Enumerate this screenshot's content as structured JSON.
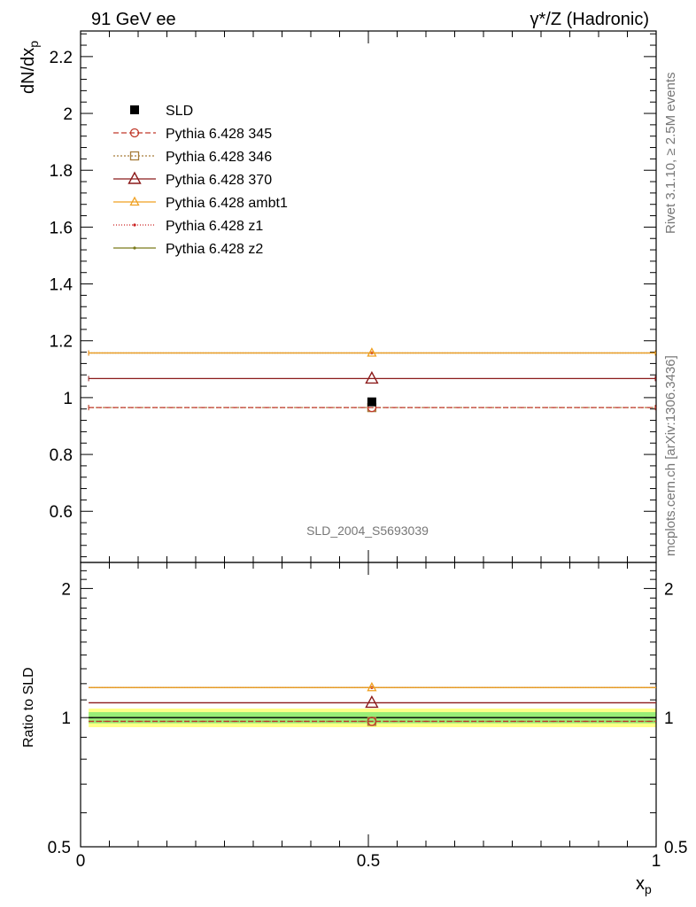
{
  "header": {
    "left": "91 GeV ee",
    "right": "γ*/Z (Hadronic)"
  },
  "side_texts": {
    "rivet": "Rivet 3.1.10, ≥ 2.5M events",
    "mcplots": "mcplots.cern.ch [arXiv:1306.3436]"
  },
  "watermark": "SLD_2004_S5693039",
  "chart_data": [
    {
      "type": "line",
      "panel": "main",
      "ylabel": "dN/dx",
      "ylabel_sub": "p",
      "xlim": [
        0,
        1
      ],
      "ylim": [
        0.42,
        2.29
      ],
      "yticks": [
        {
          "v": 0.6,
          "label": "0.6"
        },
        {
          "v": 0.8,
          "label": "0.8"
        },
        {
          "v": 1.0,
          "label": "1"
        },
        {
          "v": 1.2,
          "label": "1.2"
        },
        {
          "v": 1.4,
          "label": "1.4"
        },
        {
          "v": 1.6,
          "label": "1.6"
        },
        {
          "v": 1.8,
          "label": "1.8"
        },
        {
          "v": 2.0,
          "label": "2"
        },
        {
          "v": 2.2,
          "label": "2.2"
        }
      ],
      "data": {
        "name": "SLD",
        "x": 0.506,
        "y": 0.985
      },
      "series": [
        {
          "name": "Pythia 6.428 345",
          "x": [
            0.014,
            1.0
          ],
          "y": 0.965,
          "color": "#c0392b",
          "dash": "6,3",
          "marker": "circle"
        },
        {
          "name": "Pythia 6.428 346",
          "x": [
            0.014,
            1.0
          ],
          "y": 0.965,
          "color": "#a67c3a",
          "dash": "2,2",
          "marker": "square"
        },
        {
          "name": "Pythia 6.428 370",
          "x": [
            0.014,
            1.0
          ],
          "y": 1.067,
          "color": "#8b1a1a",
          "dash": "",
          "marker": "triangle-large"
        },
        {
          "name": "Pythia 6.428 ambt1",
          "x": [
            0.014,
            1.0
          ],
          "y": 1.157,
          "color": "#f0a020",
          "dash": "",
          "marker": "triangle"
        },
        {
          "name": "Pythia 6.428 z1",
          "x": [
            0.014,
            1.0
          ],
          "y": 1.157,
          "color": "#cc2222",
          "dash": "1,2",
          "marker": "dot"
        },
        {
          "name": "Pythia 6.428 z2",
          "x": [
            0.014,
            1.0
          ],
          "y": 1.157,
          "color": "#7a7a1a",
          "dash": "",
          "marker": "dot"
        }
      ],
      "legend_position": "top-left"
    },
    {
      "type": "line",
      "panel": "ratio",
      "ylabel": "Ratio to SLD",
      "xlabel": "x",
      "xlabel_sub": "p",
      "xlim": [
        0,
        1
      ],
      "ylim": [
        0.5,
        2.3
      ],
      "log_y": true,
      "yticks": [
        {
          "v": 0.5,
          "label": "0.5"
        },
        {
          "v": 1.0,
          "label": "1"
        },
        {
          "v": 2.0,
          "label": "2"
        }
      ],
      "xticks": [
        {
          "v": 0,
          "label": "0"
        },
        {
          "v": 0.5,
          "label": "0.5"
        },
        {
          "v": 1,
          "label": "1"
        }
      ],
      "bands": {
        "inner": [
          0.97,
          1.03
        ],
        "outer": [
          0.95,
          1.05
        ],
        "inner_color": "#99ee77",
        "outer_color": "#ffff88"
      },
      "series_ratios": [
        0.98,
        0.98,
        1.083,
        1.175,
        1.175,
        1.175
      ]
    }
  ]
}
